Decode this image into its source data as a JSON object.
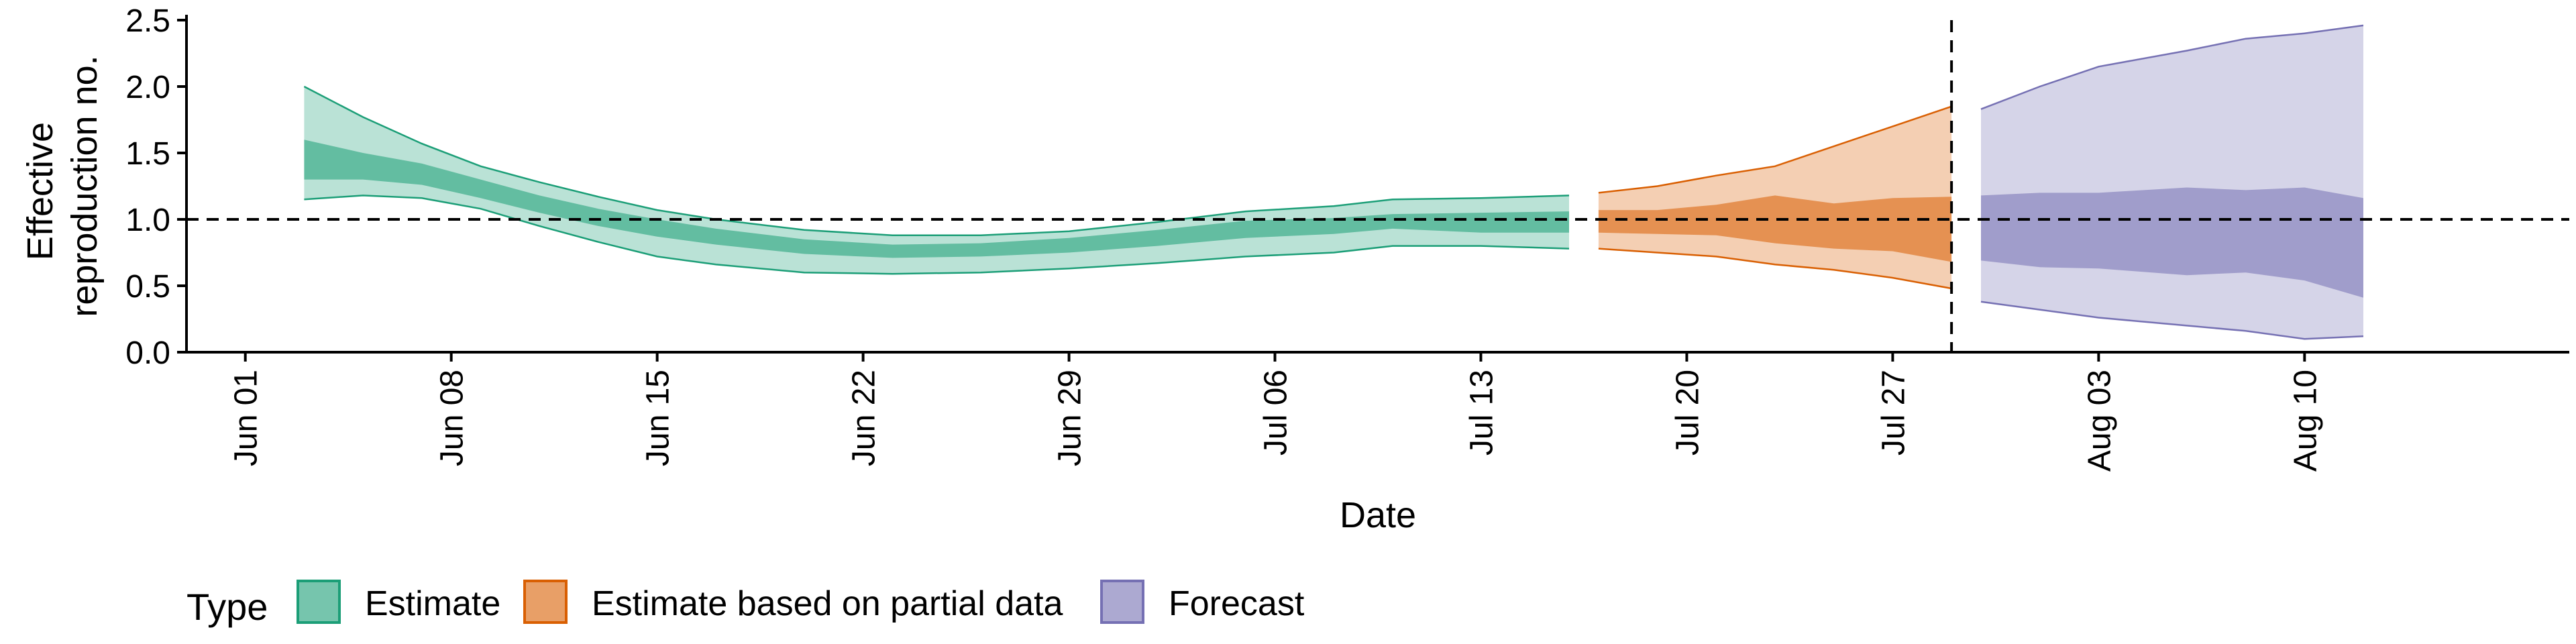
{
  "chart_data": {
    "type": "area",
    "xlabel": "Date",
    "ylabel_lines": [
      "Effective",
      "reproduction no."
    ],
    "ylim": [
      0,
      2.5
    ],
    "y_ticks": [
      0.0,
      0.5,
      1.0,
      1.5,
      2.0,
      2.5
    ],
    "y_tick_labels": [
      "0.0",
      "0.5",
      "1.0",
      "1.5",
      "2.0",
      "2.5"
    ],
    "x_ticks": [
      "2020-06-01",
      "2020-06-08",
      "2020-06-15",
      "2020-06-22",
      "2020-06-29",
      "2020-07-06",
      "2020-07-13",
      "2020-07-20",
      "2020-07-27",
      "2020-08-03",
      "2020-08-10"
    ],
    "x_tick_labels": [
      "Jun 01",
      "Jun 08",
      "Jun 15",
      "Jun 22",
      "Jun 29",
      "Jul 06",
      "Jul 13",
      "Jul 20",
      "Jul 27",
      "Aug 03",
      "Aug 10"
    ],
    "xlim": [
      "2020-05-30",
      "2020-08-19"
    ],
    "reference_lines": {
      "horizontal_y": 1.0,
      "vertical_x": "2020-07-29"
    },
    "grid": false,
    "legend": {
      "title": "Type",
      "position": "bottom",
      "entries": [
        "Estimate",
        "Estimate based on partial data",
        "Forecast"
      ]
    },
    "series": [
      {
        "name": "Estimate",
        "color": "#1b9e77",
        "points": [
          {
            "x": "2020-06-03",
            "outer": [
              1.15,
              2.0
            ],
            "inner": [
              1.3,
              1.6
            ]
          },
          {
            "x": "2020-06-05",
            "outer": [
              1.18,
              1.77
            ],
            "inner": [
              1.3,
              1.5
            ]
          },
          {
            "x": "2020-06-07",
            "outer": [
              1.16,
              1.57
            ],
            "inner": [
              1.26,
              1.42
            ]
          },
          {
            "x": "2020-06-09",
            "outer": [
              1.08,
              1.4
            ],
            "inner": [
              1.16,
              1.3
            ]
          },
          {
            "x": "2020-06-11",
            "outer": [
              0.95,
              1.28
            ],
            "inner": [
              1.05,
              1.18
            ]
          },
          {
            "x": "2020-06-13",
            "outer": [
              0.83,
              1.17
            ],
            "inner": [
              0.95,
              1.08
            ]
          },
          {
            "x": "2020-06-15",
            "outer": [
              0.72,
              1.07
            ],
            "inner": [
              0.87,
              1.0
            ]
          },
          {
            "x": "2020-06-17",
            "outer": [
              0.66,
              1.0
            ],
            "inner": [
              0.81,
              0.93
            ]
          },
          {
            "x": "2020-06-20",
            "outer": [
              0.6,
              0.92
            ],
            "inner": [
              0.74,
              0.85
            ]
          },
          {
            "x": "2020-06-23",
            "outer": [
              0.59,
              0.88
            ],
            "inner": [
              0.71,
              0.81
            ]
          },
          {
            "x": "2020-06-26",
            "outer": [
              0.6,
              0.88
            ],
            "inner": [
              0.72,
              0.82
            ]
          },
          {
            "x": "2020-06-29",
            "outer": [
              0.63,
              0.91
            ],
            "inner": [
              0.75,
              0.86
            ]
          },
          {
            "x": "2020-07-02",
            "outer": [
              0.67,
              0.98
            ],
            "inner": [
              0.8,
              0.92
            ]
          },
          {
            "x": "2020-07-05",
            "outer": [
              0.72,
              1.06
            ],
            "inner": [
              0.86,
              0.99
            ]
          },
          {
            "x": "2020-07-08",
            "outer": [
              0.75,
              1.1
            ],
            "inner": [
              0.89,
              1.01
            ]
          },
          {
            "x": "2020-07-10",
            "outer": [
              0.8,
              1.15
            ],
            "inner": [
              0.93,
              1.04
            ]
          },
          {
            "x": "2020-07-13",
            "outer": [
              0.8,
              1.16
            ],
            "inner": [
              0.9,
              1.05
            ]
          },
          {
            "x": "2020-07-16",
            "outer": [
              0.78,
              1.18
            ],
            "inner": [
              0.9,
              1.06
            ]
          }
        ]
      },
      {
        "name": "Estimate based on partial data",
        "color": "#d95f02",
        "points": [
          {
            "x": "2020-07-17",
            "outer": [
              0.78,
              1.2
            ],
            "inner": [
              0.9,
              1.07
            ]
          },
          {
            "x": "2020-07-19",
            "outer": [
              0.75,
              1.25
            ],
            "inner": [
              0.89,
              1.07
            ]
          },
          {
            "x": "2020-07-21",
            "outer": [
              0.72,
              1.33
            ],
            "inner": [
              0.88,
              1.11
            ]
          },
          {
            "x": "2020-07-23",
            "outer": [
              0.66,
              1.4
            ],
            "inner": [
              0.82,
              1.18
            ]
          },
          {
            "x": "2020-07-25",
            "outer": [
              0.62,
              1.55
            ],
            "inner": [
              0.78,
              1.12
            ]
          },
          {
            "x": "2020-07-27",
            "outer": [
              0.56,
              1.7
            ],
            "inner": [
              0.76,
              1.16
            ]
          },
          {
            "x": "2020-07-29",
            "outer": [
              0.48,
              1.85
            ],
            "inner": [
              0.68,
              1.17
            ]
          }
        ]
      },
      {
        "name": "Forecast",
        "color": "#7570b3",
        "points": [
          {
            "x": "2020-07-30",
            "outer": [
              0.38,
              1.83
            ],
            "inner": [
              0.69,
              1.18
            ]
          },
          {
            "x": "2020-08-01",
            "outer": [
              0.32,
              2.0
            ],
            "inner": [
              0.64,
              1.2
            ]
          },
          {
            "x": "2020-08-03",
            "outer": [
              0.26,
              2.15
            ],
            "inner": [
              0.63,
              1.2
            ]
          },
          {
            "x": "2020-08-06",
            "outer": [
              0.2,
              2.27
            ],
            "inner": [
              0.58,
              1.24
            ]
          },
          {
            "x": "2020-08-08",
            "outer": [
              0.16,
              2.36
            ],
            "inner": [
              0.6,
              1.22
            ]
          },
          {
            "x": "2020-08-10",
            "outer": [
              0.1,
              2.4
            ],
            "inner": [
              0.54,
              1.24
            ]
          },
          {
            "x": "2020-08-12",
            "outer": [
              0.12,
              2.46
            ],
            "inner": [
              0.41,
              1.16
            ]
          }
        ]
      }
    ]
  }
}
